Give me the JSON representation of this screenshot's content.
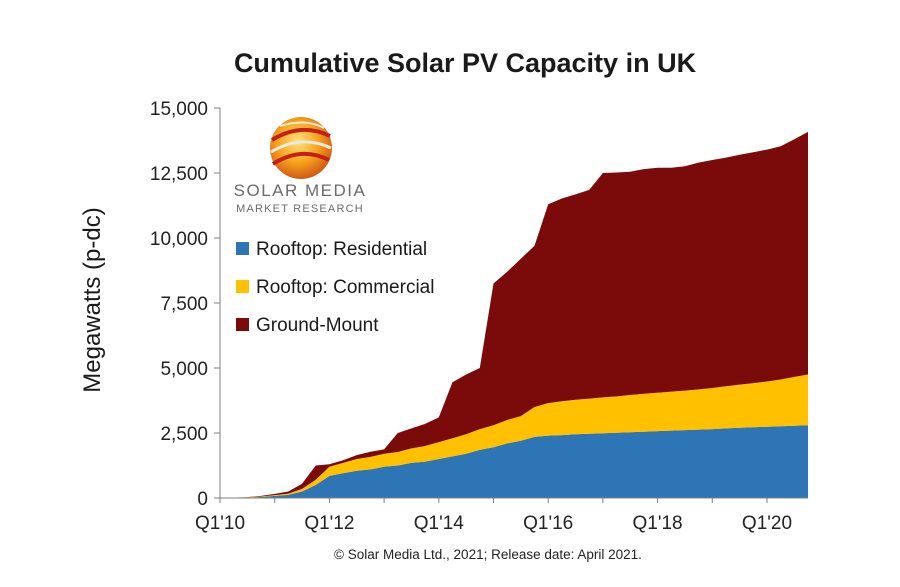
{
  "chart_data": {
    "type": "area",
    "title": "Cumulative Solar PV Capacity in UK",
    "ylabel": "Megawatts (p-dc)",
    "xlabel": "",
    "ylim": [
      0,
      15000
    ],
    "yticks": [
      0,
      2500,
      5000,
      7500,
      10000,
      12500,
      15000
    ],
    "ytick_labels": [
      "0",
      "2,500",
      "5,000",
      "7,500",
      "10,000",
      "12,500",
      "15,000"
    ],
    "xtick_labels": [
      "Q1'10",
      "Q1'12",
      "Q1'14",
      "Q1'16",
      "Q1'18",
      "Q1'20"
    ],
    "xtick_positions": [
      0,
      8,
      16,
      24,
      32,
      40
    ],
    "x": [
      "Q1'10",
      "Q2'10",
      "Q3'10",
      "Q4'10",
      "Q1'11",
      "Q2'11",
      "Q3'11",
      "Q4'11",
      "Q1'12",
      "Q2'12",
      "Q3'12",
      "Q4'12",
      "Q1'13",
      "Q2'13",
      "Q3'13",
      "Q4'13",
      "Q1'14",
      "Q2'14",
      "Q3'14",
      "Q4'14",
      "Q1'15",
      "Q2'15",
      "Q3'15",
      "Q4'15",
      "Q1'16",
      "Q2'16",
      "Q3'16",
      "Q4'16",
      "Q1'17",
      "Q2'17",
      "Q3'17",
      "Q4'17",
      "Q1'18",
      "Q2'18",
      "Q3'18",
      "Q4'18",
      "Q1'19",
      "Q2'19",
      "Q3'19",
      "Q4'19",
      "Q1'20",
      "Q2'20",
      "Q3'20",
      "Q4'20"
    ],
    "stacked": true,
    "grid": false,
    "legend_position": "upper-left",
    "series": [
      {
        "name": "Rooftop:  Residential",
        "color": "#2e75b6",
        "values": [
          5,
          10,
          20,
          40,
          80,
          120,
          250,
          500,
          850,
          950,
          1050,
          1100,
          1200,
          1250,
          1350,
          1400,
          1500,
          1600,
          1700,
          1850,
          1950,
          2100,
          2200,
          2350,
          2400,
          2420,
          2450,
          2470,
          2490,
          2510,
          2530,
          2550,
          2570,
          2590,
          2610,
          2630,
          2650,
          2680,
          2700,
          2720,
          2740,
          2760,
          2780,
          2800
        ]
      },
      {
        "name": "Rooftop:  Commercial",
        "color": "#ffc000",
        "values": [
          2,
          5,
          10,
          20,
          30,
          50,
          100,
          200,
          350,
          400,
          450,
          480,
          500,
          520,
          560,
          600,
          650,
          700,
          750,
          800,
          850,
          900,
          950,
          1150,
          1250,
          1300,
          1330,
          1350,
          1380,
          1400,
          1430,
          1460,
          1480,
          1500,
          1520,
          1550,
          1580,
          1620,
          1660,
          1700,
          1740,
          1800,
          1880,
          1950
        ]
      },
      {
        "name": "Ground-Mount",
        "color": "#7b0a0a",
        "values": [
          0,
          0,
          5,
          20,
          50,
          80,
          200,
          550,
          100,
          100,
          150,
          200,
          170,
          730,
          770,
          850,
          950,
          2150,
          2300,
          2350,
          5450,
          5700,
          6050,
          6200,
          7650,
          7800,
          7900,
          8030,
          8630,
          8610,
          8590,
          8640,
          8650,
          8610,
          8630,
          8720,
          8770,
          8790,
          8840,
          8880,
          8920,
          8970,
          9140,
          9330
        ]
      }
    ]
  },
  "logo": {
    "name": "SOLAR MEDIA",
    "subtitle": "MARKET RESEARCH"
  },
  "footer": "© Solar Media Ltd., 2021; Release date: April 2021."
}
